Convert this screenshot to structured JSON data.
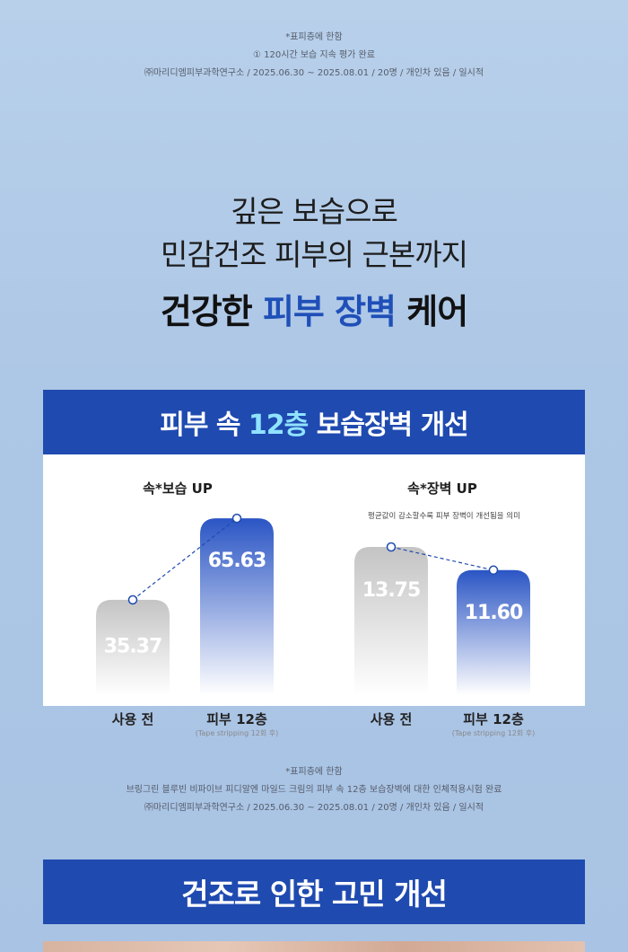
{
  "top_notes": {
    "line1": "*표피층에 한함",
    "line2": "① 120시간 보습 지속 평가 완료",
    "line3": "㈜마리디엠피부과학연구소 / 2025.06.30 ~ 2025.08.01 / 20명 / 개인차 있음 / 일시적"
  },
  "headline": {
    "line1": "깊은 보습으로",
    "line2": "민감건조 피부의 근본까지",
    "strong_a": "건강한",
    "strong_blue": "피부 장벽",
    "strong_b": "케어"
  },
  "chart_section": {
    "title_a": "피부 속",
    "title_accent": "12층",
    "title_b": "보습장벽 개선"
  },
  "chart_data": [
    {
      "type": "bar",
      "title": "속*보습 UP",
      "categories": [
        "사용 전",
        "피부 12층"
      ],
      "category_notes": [
        "",
        "(Tape stripping 12회 후)"
      ],
      "values": [
        35.37,
        65.63
      ],
      "value_labels": [
        "35.37",
        "65.63"
      ],
      "colors": [
        "#c8c8c8",
        "#2f5cc8"
      ],
      "trend_line": true
    },
    {
      "type": "bar",
      "title": "속*장벽 UP",
      "subtitle": "평균값이 감소할수록 피부 장벽이 개선됨을 의미",
      "categories": [
        "사용 전",
        "피부 12층"
      ],
      "category_notes": [
        "",
        "(Tape stripping 12회 후)"
      ],
      "values": [
        13.75,
        11.6
      ],
      "value_labels": [
        "13.75",
        "11.60"
      ],
      "colors": [
        "#c8c8c8",
        "#2f5cc8"
      ],
      "trend_line": true
    }
  ],
  "bottom_notes": {
    "line1": "*표피층에 한함",
    "line2": "브링그린 블루빈 비파이브 피디알엔 마일드 크림의 피부 속 12층 보습장벽에 대한 인체적용시험 완료",
    "line3": "㈜마리디엠피부과학연구소 / 2025.06.30 ~ 2025.08.01 / 20명 / 개인차 있음 / 일시적"
  },
  "bottom_section": {
    "title": "건조로 인한 고민 개선"
  }
}
